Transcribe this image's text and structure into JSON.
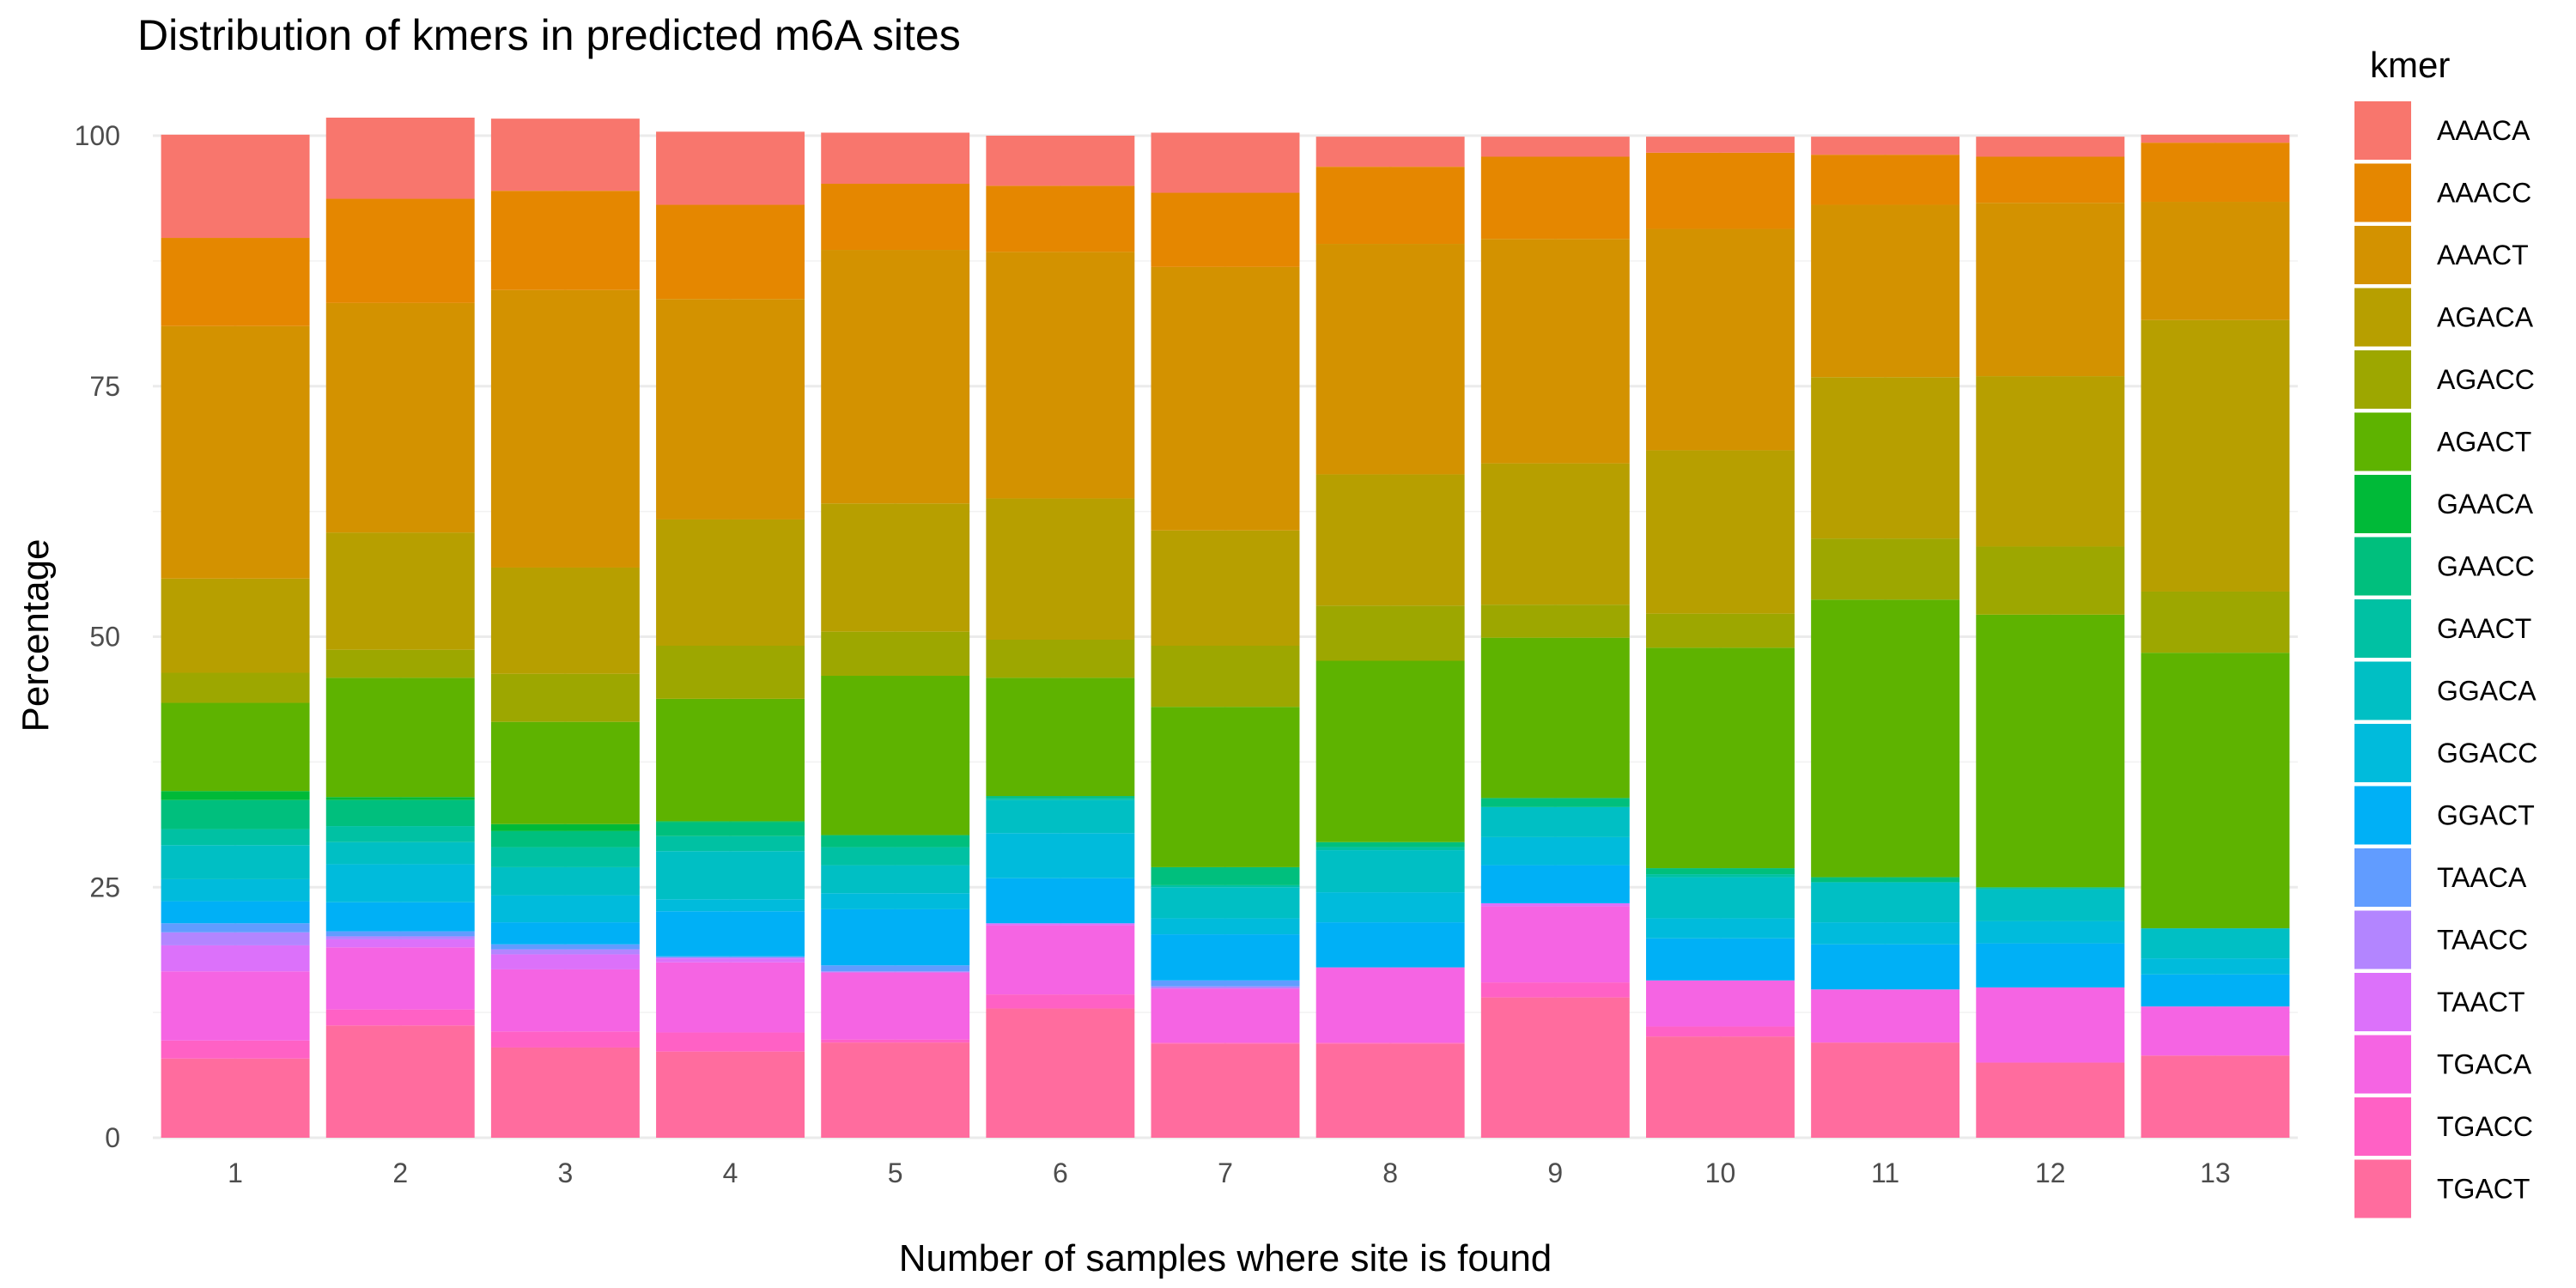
{
  "chart_data": {
    "type": "bar",
    "stacked": true,
    "title": "Distribution of kmers in predicted m6A sites",
    "xlabel": "Number of samples where site is found",
    "ylabel": "Percentage",
    "ylim": [
      0,
      100
    ],
    "yticks": [
      0,
      25,
      50,
      75,
      100
    ],
    "grid": true,
    "legend": {
      "title": "kmer",
      "position": "right"
    },
    "categories": [
      "1",
      "2",
      "3",
      "4",
      "5",
      "6",
      "7",
      "8",
      "9",
      "10",
      "11",
      "12",
      "13"
    ],
    "series": [
      {
        "name": "TGACT",
        "color": "#FF6C9E",
        "values": [
          7.9,
          11.2,
          9.0,
          8.6,
          9.5,
          12.9,
          9.4,
          9.4,
          14.0,
          10.1,
          9.5,
          7.5,
          8.2
        ]
      },
      {
        "name": "TGACC",
        "color": "#FF61C5",
        "values": [
          1.8,
          1.6,
          1.6,
          1.9,
          0.3,
          1.4,
          0.1,
          0.1,
          1.5,
          1.0,
          0.0,
          0.0,
          0.0
        ]
      },
      {
        "name": "TGACA",
        "color": "#F564E3",
        "values": [
          6.9,
          6.2,
          6.2,
          7.0,
          6.7,
          6.9,
          5.4,
          7.5,
          7.6,
          4.6,
          5.3,
          7.5,
          4.9
        ]
      },
      {
        "name": "TAACT",
        "color": "#DC71FA",
        "values": [
          2.6,
          0.8,
          1.5,
          0.4,
          0.0,
          0.2,
          0.0,
          0.0,
          0.3,
          0.0,
          0.0,
          0.0,
          0.0
        ]
      },
      {
        "name": "TAACC",
        "color": "#B385FF",
        "values": [
          1.3,
          0.3,
          0.5,
          0.1,
          0.1,
          0.0,
          0.2,
          0.0,
          0.0,
          0.0,
          0.0,
          0.0,
          0.0
        ]
      },
      {
        "name": "TAACA",
        "color": "#619CFF",
        "values": [
          0.9,
          0.5,
          0.5,
          0.1,
          0.6,
          0.0,
          0.6,
          0.0,
          0.0,
          0.0,
          0.0,
          0.0,
          0.0
        ]
      },
      {
        "name": "GGACT",
        "color": "#00B0F6",
        "values": [
          2.2,
          2.9,
          2.2,
          4.5,
          5.6,
          4.5,
          4.6,
          4.5,
          3.8,
          4.2,
          4.5,
          4.4,
          3.2
        ]
      },
      {
        "name": "GGACC",
        "color": "#00BBDC",
        "values": [
          2.2,
          3.8,
          2.7,
          1.2,
          1.6,
          4.5,
          1.6,
          3.0,
          2.8,
          2.0,
          2.2,
          2.2,
          1.6
        ]
      },
      {
        "name": "GGACA",
        "color": "#00BFC4",
        "values": [
          3.4,
          2.2,
          2.8,
          4.8,
          2.8,
          3.3,
          3.1,
          4.2,
          3.0,
          4.1,
          4.0,
          3.2,
          3.0
        ]
      },
      {
        "name": "GAACT",
        "color": "#00C1A3",
        "values": [
          1.6,
          1.6,
          2.0,
          1.5,
          1.8,
          0.2,
          0.2,
          0.3,
          0.0,
          0.3,
          0.0,
          0.1,
          0.0
        ]
      },
      {
        "name": "GAACC",
        "color": "#00BF7D",
        "values": [
          2.9,
          2.6,
          1.6,
          1.4,
          1.2,
          0.2,
          1.8,
          0.5,
          0.9,
          0.6,
          0.5,
          0.1,
          0.0
        ]
      },
      {
        "name": "GAACA",
        "color": "#00BA38",
        "values": [
          0.9,
          0.3,
          0.7,
          0.1,
          0.0,
          0.0,
          0.0,
          0.0,
          0.0,
          0.0,
          0.0,
          0.0,
          0.0
        ]
      },
      {
        "name": "AGACT",
        "color": "#5EB300",
        "values": [
          8.8,
          11.9,
          10.2,
          12.2,
          15.9,
          11.8,
          16.0,
          18.1,
          16.0,
          22.0,
          27.7,
          27.2,
          27.5
        ]
      },
      {
        "name": "AGACC",
        "color": "#9DA700",
        "values": [
          3.0,
          2.8,
          4.8,
          5.3,
          4.4,
          3.8,
          6.1,
          5.5,
          3.3,
          3.4,
          6.1,
          6.8,
          6.1
        ]
      },
      {
        "name": "AGACA",
        "color": "#B79F00",
        "values": [
          9.4,
          11.7,
          10.6,
          12.6,
          12.8,
          14.1,
          11.5,
          13.1,
          14.1,
          16.3,
          16.1,
          17.0,
          27.1
        ]
      },
      {
        "name": "AAACT",
        "color": "#D39200",
        "values": [
          25.2,
          22.9,
          27.7,
          22.0,
          25.3,
          24.6,
          26.3,
          23.0,
          22.4,
          22.1,
          17.2,
          17.3,
          11.8
        ]
      },
      {
        "name": "AAACC",
        "color": "#E58700",
        "values": [
          8.8,
          10.4,
          9.9,
          9.4,
          6.6,
          6.6,
          7.4,
          7.7,
          8.2,
          7.6,
          5.0,
          4.6,
          5.9
        ]
      },
      {
        "name": "AAACA",
        "color": "#F8766D",
        "values": [
          10.3,
          8.1,
          7.2,
          7.3,
          5.1,
          5.0,
          6.0,
          3.0,
          2.0,
          1.6,
          1.8,
          2.0,
          0.8
        ]
      }
    ]
  }
}
